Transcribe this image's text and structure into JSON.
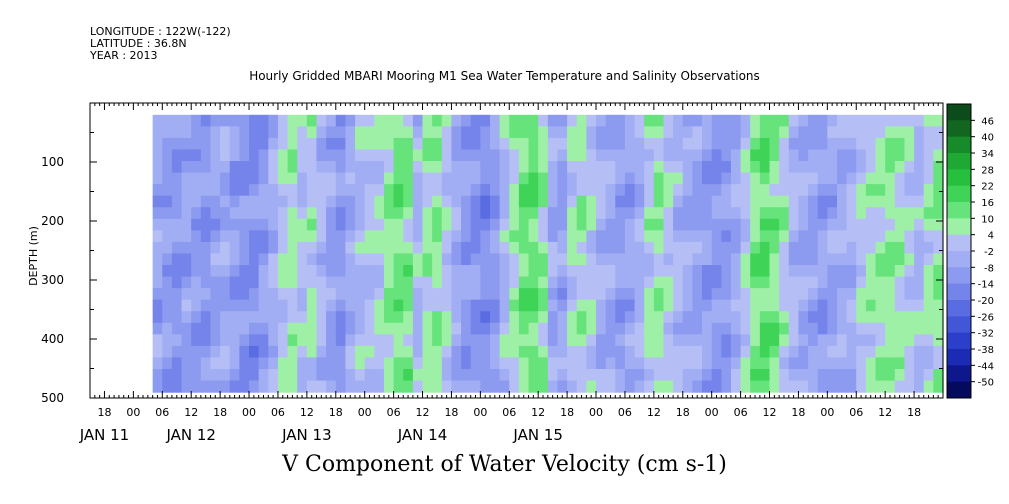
{
  "header": {
    "longitude": "LONGITUDE : 122W(-122)",
    "latitude": "LATITUDE : 36.8N",
    "year": "YEAR : 2013"
  },
  "chart_data": {
    "type": "heatmap",
    "title": "Hourly Gridded MBARI Mooring M1 Sea Water Temperature and Salinity Observations",
    "xlabel": "V Component of Water Velocity (cm s-1)",
    "ylabel": "DEPTH (m)",
    "ylim": [
      500,
      0
    ],
    "y_ticks": [
      100,
      200,
      300,
      400,
      500
    ],
    "x_range_hours": [
      -9,
      168
    ],
    "data_start_hour": 4,
    "data_end_hour": 168,
    "data_depth_range": [
      20,
      490
    ],
    "x_hour_ticks": [
      {
        "h": -6,
        "label": "18"
      },
      {
        "h": 0,
        "label": "00"
      },
      {
        "h": 6,
        "label": "06"
      },
      {
        "h": 12,
        "label": "12"
      },
      {
        "h": 18,
        "label": "18"
      },
      {
        "h": 24,
        "label": "00"
      },
      {
        "h": 30,
        "label": "06"
      },
      {
        "h": 36,
        "label": "12"
      },
      {
        "h": 42,
        "label": "18"
      },
      {
        "h": 48,
        "label": "00"
      },
      {
        "h": 54,
        "label": "06"
      },
      {
        "h": 60,
        "label": "12"
      },
      {
        "h": 66,
        "label": "18"
      },
      {
        "h": 72,
        "label": "00"
      },
      {
        "h": 78,
        "label": "06"
      },
      {
        "h": 84,
        "label": "12"
      },
      {
        "h": 90,
        "label": "18"
      },
      {
        "h": 96,
        "label": "00"
      },
      {
        "h": 102,
        "label": "06"
      },
      {
        "h": 108,
        "label": "12"
      },
      {
        "h": 114,
        "label": "18"
      },
      {
        "h": 120,
        "label": "00"
      },
      {
        "h": 126,
        "label": "06"
      },
      {
        "h": 132,
        "label": "12"
      },
      {
        "h": 138,
        "label": "18"
      },
      {
        "h": 144,
        "label": "00"
      },
      {
        "h": 150,
        "label": "06"
      },
      {
        "h": 156,
        "label": "12"
      },
      {
        "h": 162,
        "label": "18"
      }
    ],
    "x_day_labels": [
      {
        "h": -6,
        "label": "JAN 11"
      },
      {
        "h": 12,
        "label": "JAN 12"
      },
      {
        "h": 36,
        "label": "JAN 13"
      },
      {
        "h": 60,
        "label": "JAN 14"
      },
      {
        "h": 84,
        "label": "JAN 15"
      }
    ],
    "colorbar": {
      "levels": [
        "46",
        "40",
        "34",
        "28",
        "22",
        "16",
        "10",
        "4",
        "-2",
        "-8",
        "-14",
        "-20",
        "-26",
        "-32",
        "-38",
        "-44",
        "-50"
      ],
      "colors": [
        "#0c4c1c",
        "#12661f",
        "#178a2a",
        "#1fa834",
        "#27c03e",
        "#3fd458",
        "#66e37a",
        "#9ff0a7",
        "#b5bff5",
        "#a2aef3",
        "#8c9aef",
        "#7484ea",
        "#5a6ce2",
        "#4256d8",
        "#2c3fcb",
        "#1c2bb4",
        "#0f178c",
        "#050a5c"
      ]
    },
    "columns": [
      {
        "h": 4,
        "v": -8
      },
      {
        "h": 6,
        "v": -10
      },
      {
        "h": 8,
        "v": -12
      },
      {
        "h": 10,
        "v": -8
      },
      {
        "h": 12,
        "v": -10
      },
      {
        "h": 14,
        "v": -12
      },
      {
        "h": 16,
        "v": -8
      },
      {
        "h": 18,
        "v": -6
      },
      {
        "h": 20,
        "v": -10
      },
      {
        "h": 22,
        "v": -12
      },
      {
        "h": 24,
        "v": -14
      },
      {
        "h": 26,
        "v": -10
      },
      {
        "h": 28,
        "v": -4
      },
      {
        "h": 30,
        "v": 2
      },
      {
        "h": 32,
        "v": 6
      },
      {
        "h": 34,
        "v": 0
      },
      {
        "h": 36,
        "v": 4
      },
      {
        "h": 38,
        "v": -2
      },
      {
        "h": 40,
        "v": -8
      },
      {
        "h": 42,
        "v": -12
      },
      {
        "h": 44,
        "v": -6
      },
      {
        "h": 46,
        "v": -2
      },
      {
        "h": 48,
        "v": 0
      },
      {
        "h": 50,
        "v": 2
      },
      {
        "h": 52,
        "v": 8
      },
      {
        "h": 54,
        "v": 12
      },
      {
        "h": 56,
        "v": 10
      },
      {
        "h": 58,
        "v": -2
      },
      {
        "h": 60,
        "v": 6
      },
      {
        "h": 62,
        "v": 8
      },
      {
        "h": 64,
        "v": 2
      },
      {
        "h": 66,
        "v": -6
      },
      {
        "h": 68,
        "v": -10
      },
      {
        "h": 70,
        "v": -12
      },
      {
        "h": 72,
        "v": -14
      },
      {
        "h": 74,
        "v": -10
      },
      {
        "h": 76,
        "v": -2
      },
      {
        "h": 78,
        "v": 6
      },
      {
        "h": 80,
        "v": 12
      },
      {
        "h": 82,
        "v": 14
      },
      {
        "h": 84,
        "v": 8
      },
      {
        "h": 86,
        "v": -6
      },
      {
        "h": 88,
        "v": -8
      },
      {
        "h": 90,
        "v": 2
      },
      {
        "h": 92,
        "v": 6
      },
      {
        "h": 94,
        "v": 2
      },
      {
        "h": 96,
        "v": -4
      },
      {
        "h": 98,
        "v": -6
      },
      {
        "h": 100,
        "v": -10
      },
      {
        "h": 102,
        "v": -8
      },
      {
        "h": 104,
        "v": -4
      },
      {
        "h": 106,
        "v": 4
      },
      {
        "h": 108,
        "v": 8
      },
      {
        "h": 110,
        "v": 2
      },
      {
        "h": 112,
        "v": -2
      },
      {
        "h": 114,
        "v": -6
      },
      {
        "h": 116,
        "v": -8
      },
      {
        "h": 118,
        "v": -10
      },
      {
        "h": 120,
        "v": -12
      },
      {
        "h": 122,
        "v": -10
      },
      {
        "h": 124,
        "v": -6
      },
      {
        "h": 126,
        "v": 2
      },
      {
        "h": 128,
        "v": 10
      },
      {
        "h": 130,
        "v": 14
      },
      {
        "h": 132,
        "v": 10
      },
      {
        "h": 134,
        "v": 4
      },
      {
        "h": 136,
        "v": -2
      },
      {
        "h": 138,
        "v": -6
      },
      {
        "h": 140,
        "v": -8
      },
      {
        "h": 142,
        "v": -10
      },
      {
        "h": 144,
        "v": -8
      },
      {
        "h": 146,
        "v": -6
      },
      {
        "h": 148,
        "v": -4
      },
      {
        "h": 150,
        "v": 2
      },
      {
        "h": 152,
        "v": 4
      },
      {
        "h": 154,
        "v": 6
      },
      {
        "h": 156,
        "v": 8
      },
      {
        "h": 158,
        "v": 6
      },
      {
        "h": 160,
        "v": 2
      },
      {
        "h": 162,
        "v": -2
      },
      {
        "h": 164,
        "v": 4
      },
      {
        "h": 166,
        "v": 8
      }
    ]
  }
}
